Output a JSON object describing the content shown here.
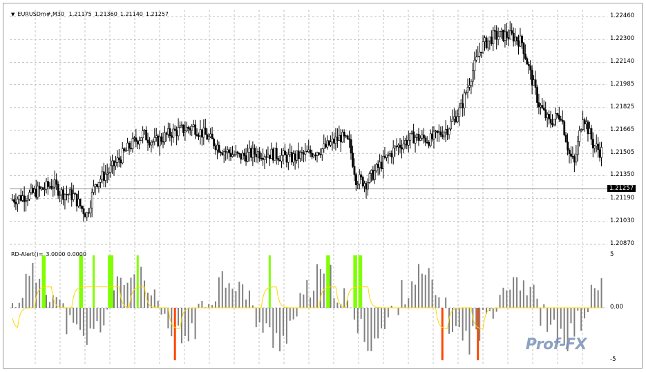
{
  "main_chart": {
    "symbol_label": "EURUSDm#,M30",
    "ohlc": [
      "1.21175",
      "1.21360",
      "1.21140",
      "1.21257"
    ],
    "price_ticks": [
      "1.22460",
      "1.22300",
      "1.22140",
      "1.21985",
      "1.21825",
      "1.21665",
      "1.21505",
      "1.21350",
      "1.21190",
      "1.21030",
      "1.20870"
    ],
    "price_range": [
      1.2087,
      1.2246
    ],
    "current_price": "1.21257",
    "colors": {
      "bull": "#ffffff",
      "bear": "#000000",
      "grid": "#c0c0c0"
    }
  },
  "indicator": {
    "label": "RD-Alert()=",
    "values": "3.0000 0.0000",
    "ticks": [
      "5",
      "0.00",
      "-5"
    ],
    "range": [
      -5,
      5
    ],
    "colors": {
      "hist": "#808080",
      "alert_up": "#7fff00",
      "alert_down": "#ff4500",
      "signal": "#ffd700"
    }
  },
  "watermark": "Prof-FX"
}
